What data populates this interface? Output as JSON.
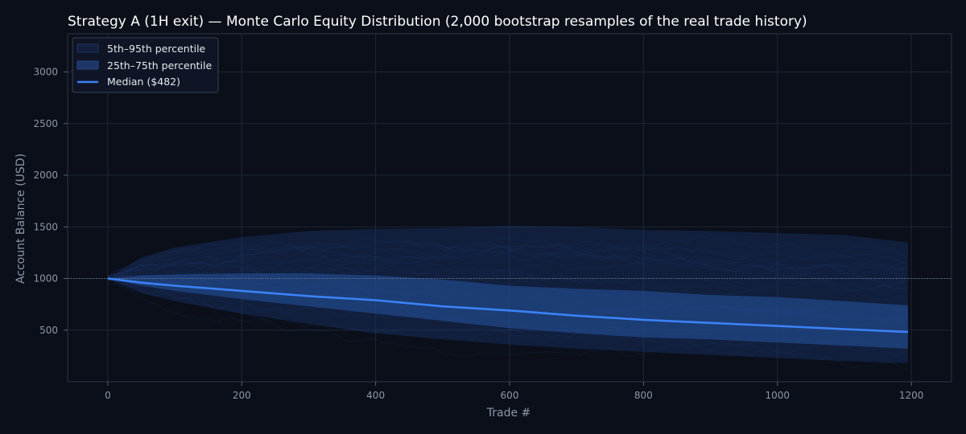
{
  "chart_data": {
    "type": "line",
    "title": "Strategy A (1H exit) — Monte Carlo Equity Distribution (2,000 bootstrap resamples of the real trade history)",
    "xlabel": "Trade #",
    "ylabel": "Account Balance (USD)",
    "xlim": [
      -60,
      1260
    ],
    "ylim": [
      0,
      3370
    ],
    "xticks": [
      0,
      200,
      400,
      600,
      800,
      1000,
      1200
    ],
    "yticks": [
      500,
      1000,
      1500,
      2000,
      2500,
      3000
    ],
    "grid": true,
    "legend_position": "top-left",
    "reference_line": {
      "y": 1000,
      "style": "dotted"
    },
    "legend": [
      {
        "label": "5th–95th percentile"
      },
      {
        "label": "25th–75th percentile"
      },
      {
        "label": "Median ($482)"
      }
    ],
    "x": [
      0,
      50,
      100,
      200,
      300,
      400,
      500,
      600,
      700,
      800,
      900,
      1000,
      1100,
      1195
    ],
    "bands": {
      "p5": [
        1000,
        860,
        780,
        660,
        560,
        470,
        410,
        360,
        320,
        290,
        260,
        230,
        200,
        180
      ],
      "p25": [
        1000,
        930,
        880,
        800,
        730,
        660,
        590,
        520,
        470,
        430,
        410,
        380,
        350,
        320
      ],
      "p75": [
        1000,
        1030,
        1040,
        1050,
        1050,
        1030,
        990,
        930,
        900,
        880,
        840,
        820,
        780,
        740
      ],
      "p95": [
        1000,
        1200,
        1300,
        1400,
        1460,
        1480,
        1490,
        1510,
        1500,
        1470,
        1460,
        1440,
        1420,
        1350
      ]
    },
    "series": [
      {
        "name": "Median ($482)",
        "x": [
          0,
          50,
          100,
          200,
          300,
          400,
          500,
          600,
          700,
          800,
          900,
          1000,
          1100,
          1195
        ],
        "values": [
          1000,
          960,
          930,
          880,
          830,
          790,
          730,
          690,
          640,
          600,
          570,
          540,
          510,
          482
        ]
      }
    ],
    "colors": {
      "background": "#0b0f19",
      "band_outer": "#1a3670",
      "band_inner": "#24509a",
      "median": "#3b82f6",
      "grid": "#1e2637",
      "axis": "#2c3446",
      "reference": "#6b7589"
    }
  }
}
